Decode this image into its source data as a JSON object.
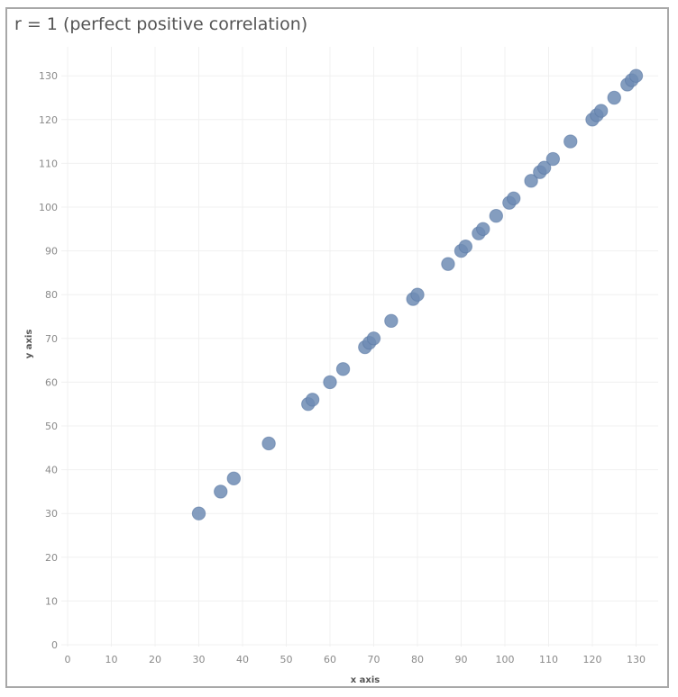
{
  "chart_data": {
    "type": "scatter",
    "title": "r = 1 (perfect positive correlation)",
    "xlabel": "x axis",
    "ylabel": "y axis",
    "xlim": [
      0,
      130
    ],
    "ylim": [
      0,
      130
    ],
    "x_ticks": [
      0,
      10,
      20,
      30,
      40,
      50,
      60,
      70,
      80,
      90,
      100,
      110,
      120,
      130
    ],
    "y_ticks": [
      0,
      10,
      20,
      30,
      40,
      50,
      60,
      70,
      80,
      90,
      100,
      110,
      120,
      130
    ],
    "grid": true,
    "point_color": "#6f8cb4",
    "points": [
      {
        "x": 30,
        "y": 30
      },
      {
        "x": 35,
        "y": 35
      },
      {
        "x": 38,
        "y": 38
      },
      {
        "x": 46,
        "y": 46
      },
      {
        "x": 55,
        "y": 55
      },
      {
        "x": 56,
        "y": 56
      },
      {
        "x": 60,
        "y": 60
      },
      {
        "x": 63,
        "y": 63
      },
      {
        "x": 68,
        "y": 68
      },
      {
        "x": 69,
        "y": 69
      },
      {
        "x": 70,
        "y": 70
      },
      {
        "x": 74,
        "y": 74
      },
      {
        "x": 79,
        "y": 79
      },
      {
        "x": 80,
        "y": 80
      },
      {
        "x": 87,
        "y": 87
      },
      {
        "x": 90,
        "y": 90
      },
      {
        "x": 91,
        "y": 91
      },
      {
        "x": 94,
        "y": 94
      },
      {
        "x": 95,
        "y": 95
      },
      {
        "x": 98,
        "y": 98
      },
      {
        "x": 101,
        "y": 101
      },
      {
        "x": 102,
        "y": 102
      },
      {
        "x": 106,
        "y": 106
      },
      {
        "x": 108,
        "y": 108
      },
      {
        "x": 109,
        "y": 109
      },
      {
        "x": 111,
        "y": 111
      },
      {
        "x": 115,
        "y": 115
      },
      {
        "x": 120,
        "y": 120
      },
      {
        "x": 121,
        "y": 121
      },
      {
        "x": 122,
        "y": 122
      },
      {
        "x": 125,
        "y": 125
      },
      {
        "x": 128,
        "y": 128
      },
      {
        "x": 129,
        "y": 129
      },
      {
        "x": 130,
        "y": 130
      }
    ]
  }
}
